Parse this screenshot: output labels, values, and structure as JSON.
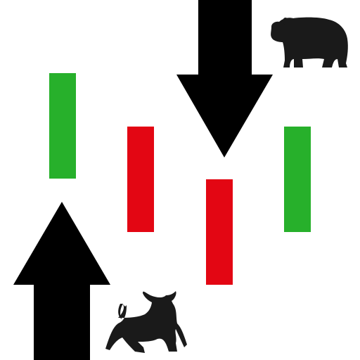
{
  "colors": {
    "background": "#ffffff",
    "bullish": "#27b02b",
    "bearish": "#e30613",
    "arrow": "#000000",
    "silhouette": "#1a1a1a"
  },
  "candles": [
    {
      "direction": "bullish"
    },
    {
      "direction": "bearish"
    },
    {
      "direction": "bearish"
    },
    {
      "direction": "bullish"
    }
  ],
  "arrows": [
    {
      "direction": "up"
    },
    {
      "direction": "down"
    }
  ],
  "animals": [
    {
      "kind": "bull-icon"
    },
    {
      "kind": "bear-icon"
    }
  ]
}
